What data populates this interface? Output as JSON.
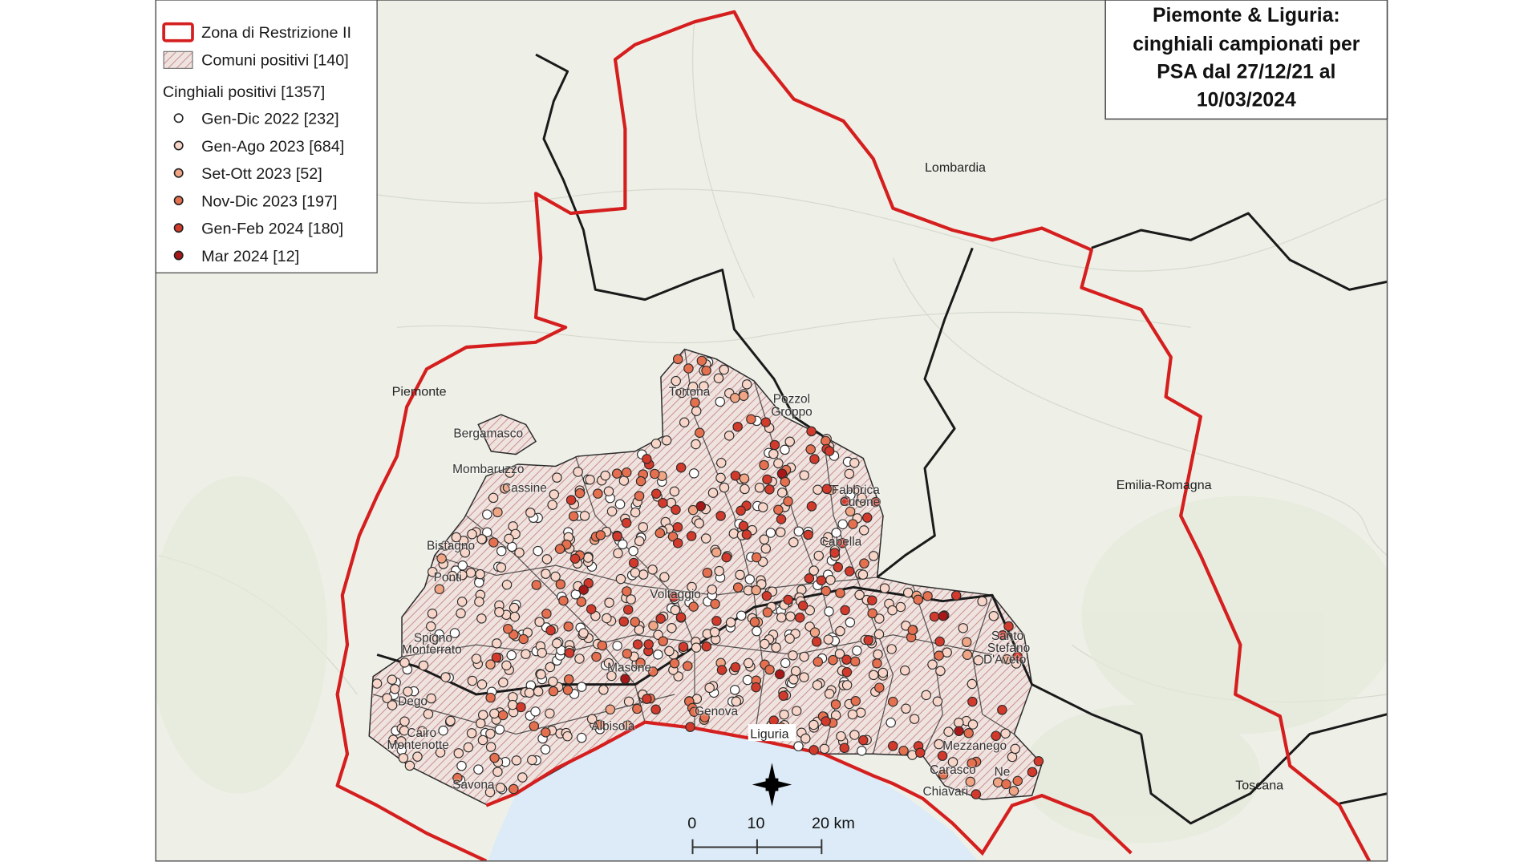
{
  "title": {
    "lines": [
      "Piemonte & Liguria:",
      "cinghiali campionati per",
      "PSA dal 27/12/21 al",
      "10/03/2024"
    ]
  },
  "legend": {
    "zone_label": "Zona di Restrizione II",
    "comuni_label": "Comuni positivi [140]",
    "boars_header": "Cinghiali positivi [1357]",
    "items": [
      {
        "label": "Gen-Dic 2022 [232]",
        "count": 232,
        "color": "#ffffff"
      },
      {
        "label": "Gen-Ago 2023 [684]",
        "count": 684,
        "color": "#f7d5c8"
      },
      {
        "label": "Set-Ott 2023 [52]",
        "count": 52,
        "color": "#f0a585"
      },
      {
        "label": "Nov-Dic 2023 [197]",
        "count": 197,
        "color": "#e4704f"
      },
      {
        "label": "Gen-Feb 2024 [180]",
        "count": 180,
        "color": "#d23a2c"
      },
      {
        "label": "Mar 2024 [12]",
        "count": 12,
        "color": "#a81818"
      }
    ]
  },
  "colors": {
    "zone_border": "#d51f1f",
    "region_border": "#1a1a1a",
    "sea": "#dcebf7",
    "land": "#eef0e8"
  },
  "regions": [
    "Lombardia",
    "Piemonte",
    "Emilia-Romagna",
    "Toscana",
    "Liguria"
  ],
  "comuni": [
    "Tortona",
    "Pozzol",
    "Groppo",
    "Bergamasco",
    "Mombaruzzo",
    "Cassine",
    "Bistagno",
    "Ponti",
    "Spigno",
    "Monferrato",
    "Dego",
    "Cairo",
    "Montenotte",
    "Savona",
    "Masone",
    "Genova",
    "Voltaggio",
    "Cabella",
    "Fabbrica",
    "Curone",
    "Santo",
    "Stefano",
    "D'Aveto",
    "Mezzanego",
    "Carasco",
    "Ne",
    "Chiavari",
    "Albisola"
  ],
  "scale_bar": {
    "labels": [
      "0",
      "10",
      "20 km"
    ]
  },
  "north_arrow": "north-star-icon"
}
